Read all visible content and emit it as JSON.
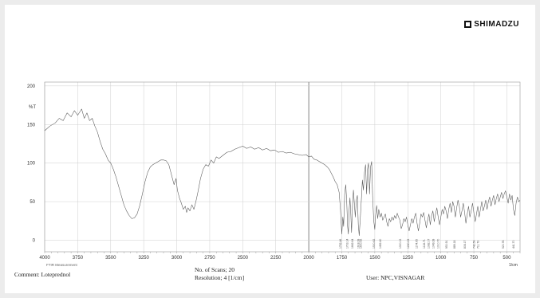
{
  "brand": {
    "name": "SHIMADZU",
    "icon": "shimadzu-logo-icon"
  },
  "chart_data": {
    "type": "line",
    "title": "",
    "ylabel": "%T",
    "xlabel": "",
    "x_unit_label": "1/cm",
    "x_axis_caption": "FTIR Measurement",
    "xlim": [
      4000,
      400
    ],
    "ylim": [
      -15,
      205
    ],
    "x_reversed": true,
    "grid": true,
    "x_ticks": [
      4000,
      3750,
      3500,
      3250,
      3000,
      2750,
      2500,
      2250,
      2000,
      1750,
      1500,
      1250,
      1000,
      750,
      500
    ],
    "y_ticks": [
      0,
      50,
      100,
      150,
      200
    ],
    "series": [
      {
        "name": "",
        "points": [
          [
            4000,
            142
          ],
          [
            3960,
            148
          ],
          [
            3920,
            152
          ],
          [
            3890,
            158
          ],
          [
            3860,
            155
          ],
          [
            3830,
            165
          ],
          [
            3800,
            160
          ],
          [
            3775,
            168
          ],
          [
            3750,
            162
          ],
          [
            3720,
            170
          ],
          [
            3700,
            158
          ],
          [
            3680,
            165
          ],
          [
            3660,
            155
          ],
          [
            3640,
            158
          ],
          [
            3620,
            148
          ],
          [
            3600,
            140
          ],
          [
            3580,
            128
          ],
          [
            3560,
            118
          ],
          [
            3540,
            112
          ],
          [
            3520,
            104
          ],
          [
            3500,
            100
          ],
          [
            3480,
            92
          ],
          [
            3460,
            82
          ],
          [
            3440,
            70
          ],
          [
            3420,
            58
          ],
          [
            3400,
            46
          ],
          [
            3380,
            38
          ],
          [
            3360,
            32
          ],
          [
            3340,
            28
          ],
          [
            3320,
            29
          ],
          [
            3300,
            34
          ],
          [
            3280,
            45
          ],
          [
            3260,
            60
          ],
          [
            3240,
            76
          ],
          [
            3220,
            88
          ],
          [
            3200,
            95
          ],
          [
            3180,
            98
          ],
          [
            3160,
            100
          ],
          [
            3140,
            102
          ],
          [
            3120,
            104
          ],
          [
            3100,
            104
          ],
          [
            3080,
            103
          ],
          [
            3060,
            98
          ],
          [
            3040,
            85
          ],
          [
            3020,
            72
          ],
          [
            3005,
            80
          ],
          [
            2995,
            65
          ],
          [
            2980,
            55
          ],
          [
            2965,
            48
          ],
          [
            2950,
            40
          ],
          [
            2935,
            44
          ],
          [
            2925,
            36
          ],
          [
            2915,
            42
          ],
          [
            2900,
            38
          ],
          [
            2885,
            46
          ],
          [
            2870,
            40
          ],
          [
            2855,
            50
          ],
          [
            2840,
            62
          ],
          [
            2820,
            80
          ],
          [
            2800,
            92
          ],
          [
            2780,
            98
          ],
          [
            2760,
            96
          ],
          [
            2740,
            104
          ],
          [
            2720,
            100
          ],
          [
            2700,
            108
          ],
          [
            2680,
            106
          ],
          [
            2650,
            110
          ],
          [
            2620,
            114
          ],
          [
            2590,
            115
          ],
          [
            2560,
            118
          ],
          [
            2530,
            120
          ],
          [
            2500,
            122
          ],
          [
            2470,
            119
          ],
          [
            2440,
            121
          ],
          [
            2410,
            118
          ],
          [
            2380,
            120
          ],
          [
            2350,
            117
          ],
          [
            2320,
            119
          ],
          [
            2290,
            116
          ],
          [
            2260,
            117
          ],
          [
            2230,
            114
          ],
          [
            2200,
            115
          ],
          [
            2170,
            113
          ],
          [
            2140,
            114
          ],
          [
            2110,
            112
          ],
          [
            2080,
            111
          ],
          [
            2050,
            110
          ],
          [
            2020,
            111
          ],
          [
            2000,
            108
          ],
          [
            1980,
            109
          ],
          [
            1960,
            105
          ],
          [
            1940,
            104
          ],
          [
            1920,
            102
          ],
          [
            1900,
            100
          ],
          [
            1880,
            98
          ],
          [
            1860,
            95
          ],
          [
            1845,
            92
          ],
          [
            1830,
            87
          ],
          [
            1815,
            82
          ],
          [
            1800,
            76
          ],
          [
            1785,
            72
          ],
          [
            1770,
            62
          ],
          [
            1760,
            40
          ],
          [
            1750,
            8
          ],
          [
            1742,
            30
          ],
          [
            1736,
            18
          ],
          [
            1728,
            60
          ],
          [
            1720,
            72
          ],
          [
            1713,
            52
          ],
          [
            1706,
            18
          ],
          [
            1700,
            8
          ],
          [
            1694,
            40
          ],
          [
            1688,
            55
          ],
          [
            1682,
            35
          ],
          [
            1676,
            10
          ],
          [
            1670,
            40
          ],
          [
            1662,
            65
          ],
          [
            1655,
            48
          ],
          [
            1648,
            30
          ],
          [
            1640,
            52
          ],
          [
            1632,
            58
          ],
          [
            1625,
            20
          ],
          [
            1618,
            6
          ],
          [
            1610,
            28
          ],
          [
            1602,
            52
          ],
          [
            1594,
            78
          ],
          [
            1586,
            65
          ],
          [
            1578,
            88
          ],
          [
            1570,
            98
          ],
          [
            1562,
            60
          ],
          [
            1555,
            92
          ],
          [
            1548,
            100
          ],
          [
            1540,
            60
          ],
          [
            1532,
            95
          ],
          [
            1524,
            102
          ],
          [
            1516,
            55
          ],
          [
            1508,
            25
          ],
          [
            1500,
            14
          ],
          [
            1494,
            32
          ],
          [
            1486,
            45
          ],
          [
            1478,
            28
          ],
          [
            1470,
            40
          ],
          [
            1460,
            30
          ],
          [
            1450,
            35
          ],
          [
            1440,
            26
          ],
          [
            1430,
            30
          ],
          [
            1420,
            34
          ],
          [
            1410,
            24
          ],
          [
            1400,
            18
          ],
          [
            1390,
            28
          ],
          [
            1380,
            24
          ],
          [
            1370,
            30
          ],
          [
            1360,
            26
          ],
          [
            1350,
            32
          ],
          [
            1340,
            28
          ],
          [
            1330,
            35
          ],
          [
            1320,
            30
          ],
          [
            1310,
            26
          ],
          [
            1300,
            15
          ],
          [
            1290,
            20
          ],
          [
            1280,
            28
          ],
          [
            1270,
            24
          ],
          [
            1260,
            30
          ],
          [
            1250,
            20
          ],
          [
            1240,
            12
          ],
          [
            1230,
            20
          ],
          [
            1220,
            28
          ],
          [
            1210,
            22
          ],
          [
            1200,
            30
          ],
          [
            1190,
            35
          ],
          [
            1180,
            22
          ],
          [
            1170,
            12
          ],
          [
            1160,
            22
          ],
          [
            1150,
            34
          ],
          [
            1140,
            30
          ],
          [
            1130,
            36
          ],
          [
            1120,
            26
          ],
          [
            1110,
            16
          ],
          [
            1100,
            26
          ],
          [
            1090,
            34
          ],
          [
            1080,
            20
          ],
          [
            1070,
            32
          ],
          [
            1060,
            38
          ],
          [
            1050,
            24
          ],
          [
            1040,
            34
          ],
          [
            1030,
            42
          ],
          [
            1020,
            30
          ],
          [
            1010,
            20
          ],
          [
            1000,
            30
          ],
          [
            990,
            40
          ],
          [
            980,
            34
          ],
          [
            970,
            44
          ],
          [
            960,
            38
          ],
          [
            950,
            28
          ],
          [
            940,
            40
          ],
          [
            930,
            48
          ],
          [
            920,
            36
          ],
          [
            910,
            50
          ],
          [
            900,
            44
          ],
          [
            890,
            30
          ],
          [
            880,
            42
          ],
          [
            870,
            52
          ],
          [
            860,
            44
          ],
          [
            850,
            30
          ],
          [
            840,
            38
          ],
          [
            830,
            48
          ],
          [
            820,
            36
          ],
          [
            810,
            22
          ],
          [
            800,
            34
          ],
          [
            790,
            44
          ],
          [
            780,
            30
          ],
          [
            770,
            38
          ],
          [
            760,
            48
          ],
          [
            750,
            36
          ],
          [
            740,
            24
          ],
          [
            730,
            34
          ],
          [
            720,
            44
          ],
          [
            710,
            30
          ],
          [
            700,
            40
          ],
          [
            690,
            50
          ],
          [
            680,
            38
          ],
          [
            670,
            44
          ],
          [
            660,
            52
          ],
          [
            650,
            40
          ],
          [
            640,
            50
          ],
          [
            630,
            56
          ],
          [
            620,
            44
          ],
          [
            610,
            52
          ],
          [
            600,
            58
          ],
          [
            590,
            46
          ],
          [
            580,
            54
          ],
          [
            570,
            60
          ],
          [
            560,
            50
          ],
          [
            550,
            56
          ],
          [
            540,
            62
          ],
          [
            530,
            54
          ],
          [
            520,
            60
          ],
          [
            510,
            64
          ],
          [
            500,
            56
          ],
          [
            490,
            48
          ],
          [
            480,
            60
          ],
          [
            470,
            52
          ],
          [
            460,
            58
          ],
          [
            450,
            40
          ],
          [
            440,
            32
          ],
          [
            430,
            48
          ],
          [
            420,
            56
          ],
          [
            410,
            50
          ],
          [
            400,
            52
          ]
        ]
      }
    ],
    "peak_labels": [
      {
        "x": 1752,
        "label": "1752.46"
      },
      {
        "x": 1703,
        "label": "1703.14"
      },
      {
        "x": 1663,
        "label": "1662.64"
      },
      {
        "x": 1618,
        "label": "1618.28"
      },
      {
        "x": 1600,
        "label": "1600.92"
      },
      {
        "x": 1500,
        "label": "1500.62"
      },
      {
        "x": 1452,
        "label": "1452.40"
      },
      {
        "x": 1300,
        "label": "1300.02"
      },
      {
        "x": 1240,
        "label": "1240.23"
      },
      {
        "x": 1175,
        "label": "1174.65"
      },
      {
        "x": 1120,
        "label": "1118.71"
      },
      {
        "x": 1085,
        "label": "1082.07"
      },
      {
        "x": 1050,
        "label": "1049.28"
      },
      {
        "x": 1012,
        "label": "1010.70"
      },
      {
        "x": 951,
        "label": "950.91"
      },
      {
        "x": 890,
        "label": "889.18"
      },
      {
        "x": 810,
        "label": "808.17"
      },
      {
        "x": 742,
        "label": "742.59"
      },
      {
        "x": 711,
        "label": "711.73"
      },
      {
        "x": 520,
        "label": "520.78"
      },
      {
        "x": 441,
        "label": "441.70"
      }
    ]
  },
  "footer": {
    "comment": "Comment: Loteprednol",
    "scans": "No. of Scans; 20",
    "resolution": "Resolution;    4 [1/cm]",
    "user": "User: NPC,VISNAGAR"
  }
}
